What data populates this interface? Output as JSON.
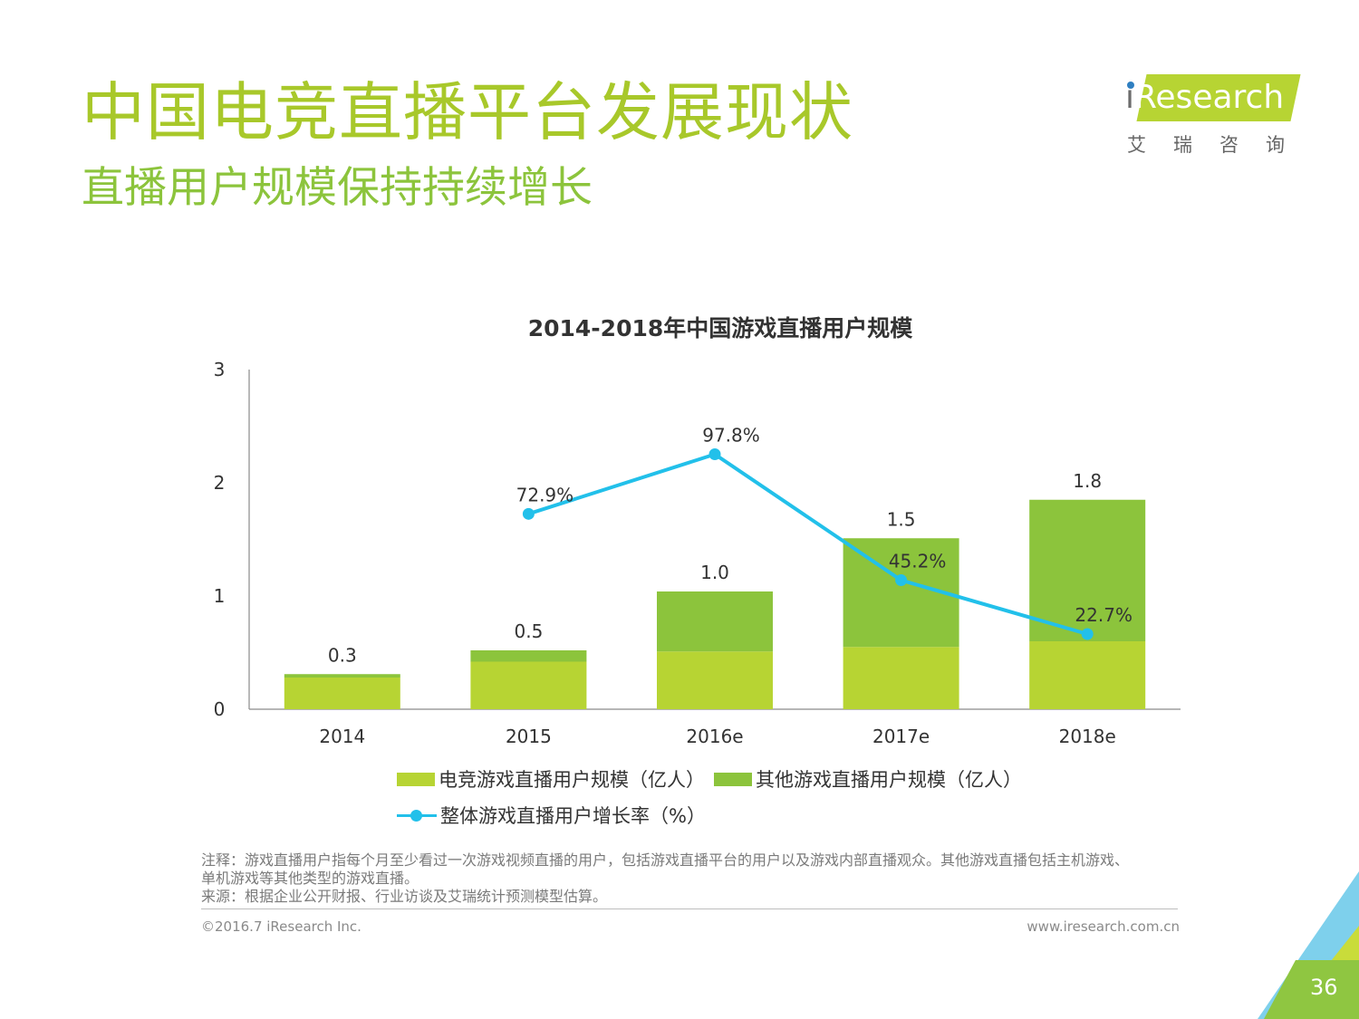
{
  "header": {
    "title": "中国电竞直播平台发展现状",
    "subtitle": "直播用户规模保持持续增长"
  },
  "logo": {
    "brand_i": "i",
    "brand_rest": "Research",
    "cn": "艾瑞咨询"
  },
  "colors": {
    "title": "#a8c82a",
    "subtitle": "#8cc43c",
    "esports_bar": "#b7d433",
    "other_bar": "#8cc43c",
    "growth_line": "#22c0ea"
  },
  "chart_data": {
    "type": "bar",
    "title": "2014-2018年中国游戏直播用户规模",
    "stacked": true,
    "categories": [
      "2014",
      "2015",
      "2016e",
      "2017e",
      "2018e"
    ],
    "ylim": [
      0,
      3
    ],
    "yticks": [
      "0",
      "1",
      "2",
      "3"
    ],
    "totals": [
      "0.3",
      "0.5",
      "1.0",
      "1.5",
      "1.8"
    ],
    "series": [
      {
        "name": "电竞游戏直播用户规模（亿人）",
        "values": [
          0.28,
          0.42,
          0.51,
          0.55,
          0.6
        ]
      },
      {
        "name": "其他游戏直播用户规模（亿人）",
        "values": [
          0.03,
          0.1,
          0.53,
          0.96,
          1.25
        ]
      }
    ],
    "line_series": {
      "name": "整体游戏直播用户增长率（%）",
      "values": [
        null,
        72.9,
        97.8,
        45.2,
        22.7
      ],
      "labels": [
        "",
        "72.9%",
        "97.8%",
        "45.2%",
        "22.7%"
      ]
    },
    "legend_position": "bottom",
    "grid": false
  },
  "legend": {
    "item1": "电竞游戏直播用户规模（亿人）",
    "item2": "其他游戏直播用户规模（亿人）",
    "item3": "整体游戏直播用户增长率（%）"
  },
  "notes": {
    "line1": "注释：游戏直播用户指每个月至少看过一次游戏视频直播的用户，包括游戏直播平台的用户以及游戏内部直播观众。其他游戏直播包括主机游戏、",
    "line2": "单机游戏等其他类型的游戏直播。",
    "line3": "来源：根据企业公开财报、行业访谈及艾瑞统计预测模型估算。"
  },
  "footer": {
    "copyright": "©2016.7 iResearch Inc.",
    "website": "www.iresearch.com.cn",
    "page": "36"
  }
}
